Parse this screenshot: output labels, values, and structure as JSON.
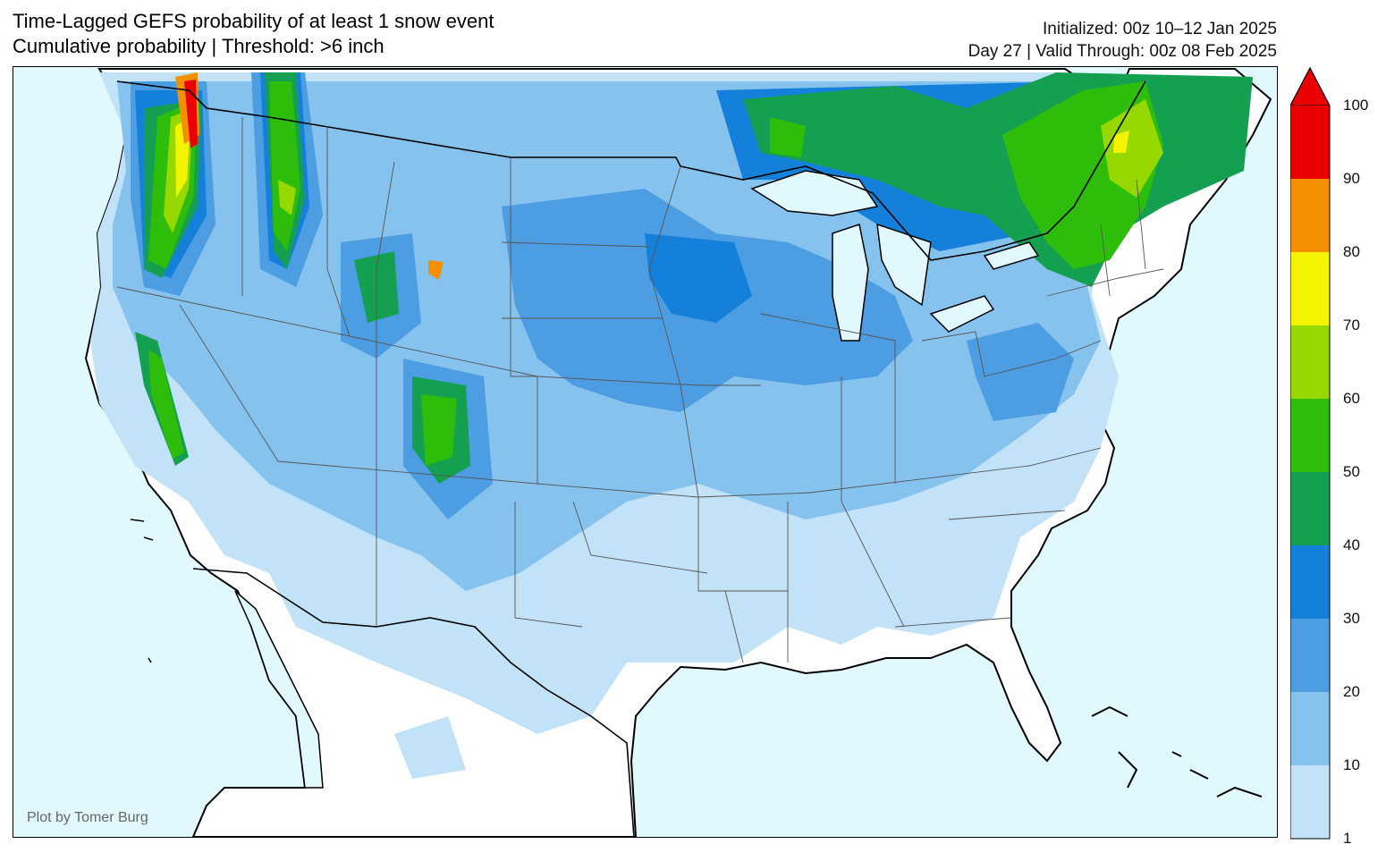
{
  "header": {
    "title_line1": "Time-Lagged GEFS probability of at least 1 snow event",
    "title_line2": "Cumulative probability | Threshold: >6 inch",
    "init_line": "Initialized: 00z 10–12 Jan 2025",
    "valid_line": "Day 27 | Valid Through: 00z 08 Feb 2025"
  },
  "credit": "Plot by Tomer Burg",
  "colors": {
    "ocean": "#e0f8fe",
    "land": "#ffffff",
    "c1_10": "#c2e2f8",
    "c10_20": "#86c2ee",
    "c20_30": "#4c9de2",
    "c30_40": "#1480da",
    "c40_50": "#14a050",
    "c50_60": "#2fbd0c",
    "c60_70": "#96d800",
    "c70_80": "#f4f400",
    "c80_90": "#f49000",
    "c90_100": "#ea0000"
  },
  "colorbar": {
    "levels": [
      "1",
      "10",
      "20",
      "30",
      "40",
      "50",
      "60",
      "70",
      "80",
      "90",
      "100"
    ],
    "extend": "max"
  }
}
